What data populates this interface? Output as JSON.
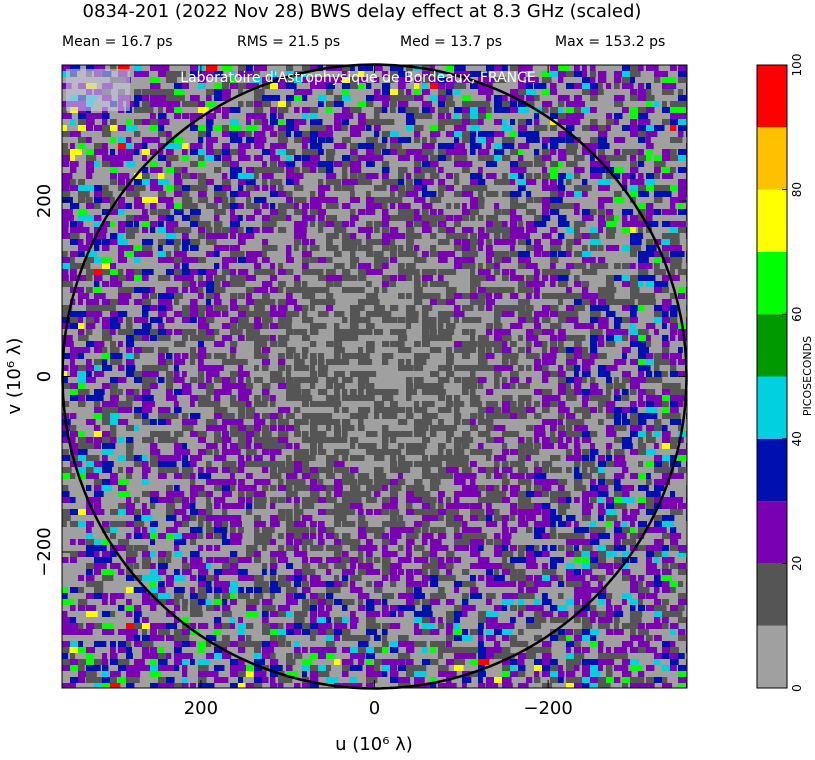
{
  "chart_data": {
    "type": "heatmap",
    "title": "0834-201  (2022 Nov 28)   BWS delay effect at  8.3 GHz (scaled)",
    "stats": [
      "Mean =   16.7 ps",
      "RMS =   21.5 ps",
      "Med =   13.7 ps",
      "Max =  153.2 ps"
    ],
    "watermark": "Laboratoire d'Astrophysique de Bordeaux, FRANCE",
    "xlabel": "u  (10⁶ λ)",
    "ylabel": "v  (10⁶ λ)",
    "xlim": [
      360,
      -360
    ],
    "ylim": [
      -355,
      355
    ],
    "xticks": [
      200,
      0,
      {
        "value": -200,
        "label": "−200"
      }
    ],
    "yticks": [
      {
        "value": -200,
        "label": "−200"
      },
      0,
      200
    ],
    "colorbar": {
      "label": "PICOSECONDS",
      "lim": [
        0,
        100
      ],
      "ticks": [
        0,
        20,
        40,
        60,
        80,
        100
      ],
      "colors": [
        "#a0a0a0",
        "#555555",
        "#7a00b4",
        "#0010b0",
        "#00d0e0",
        "#009a00",
        "#00ff00",
        "#ffff00",
        "#ffc000",
        "#ff0000"
      ]
    }
  }
}
